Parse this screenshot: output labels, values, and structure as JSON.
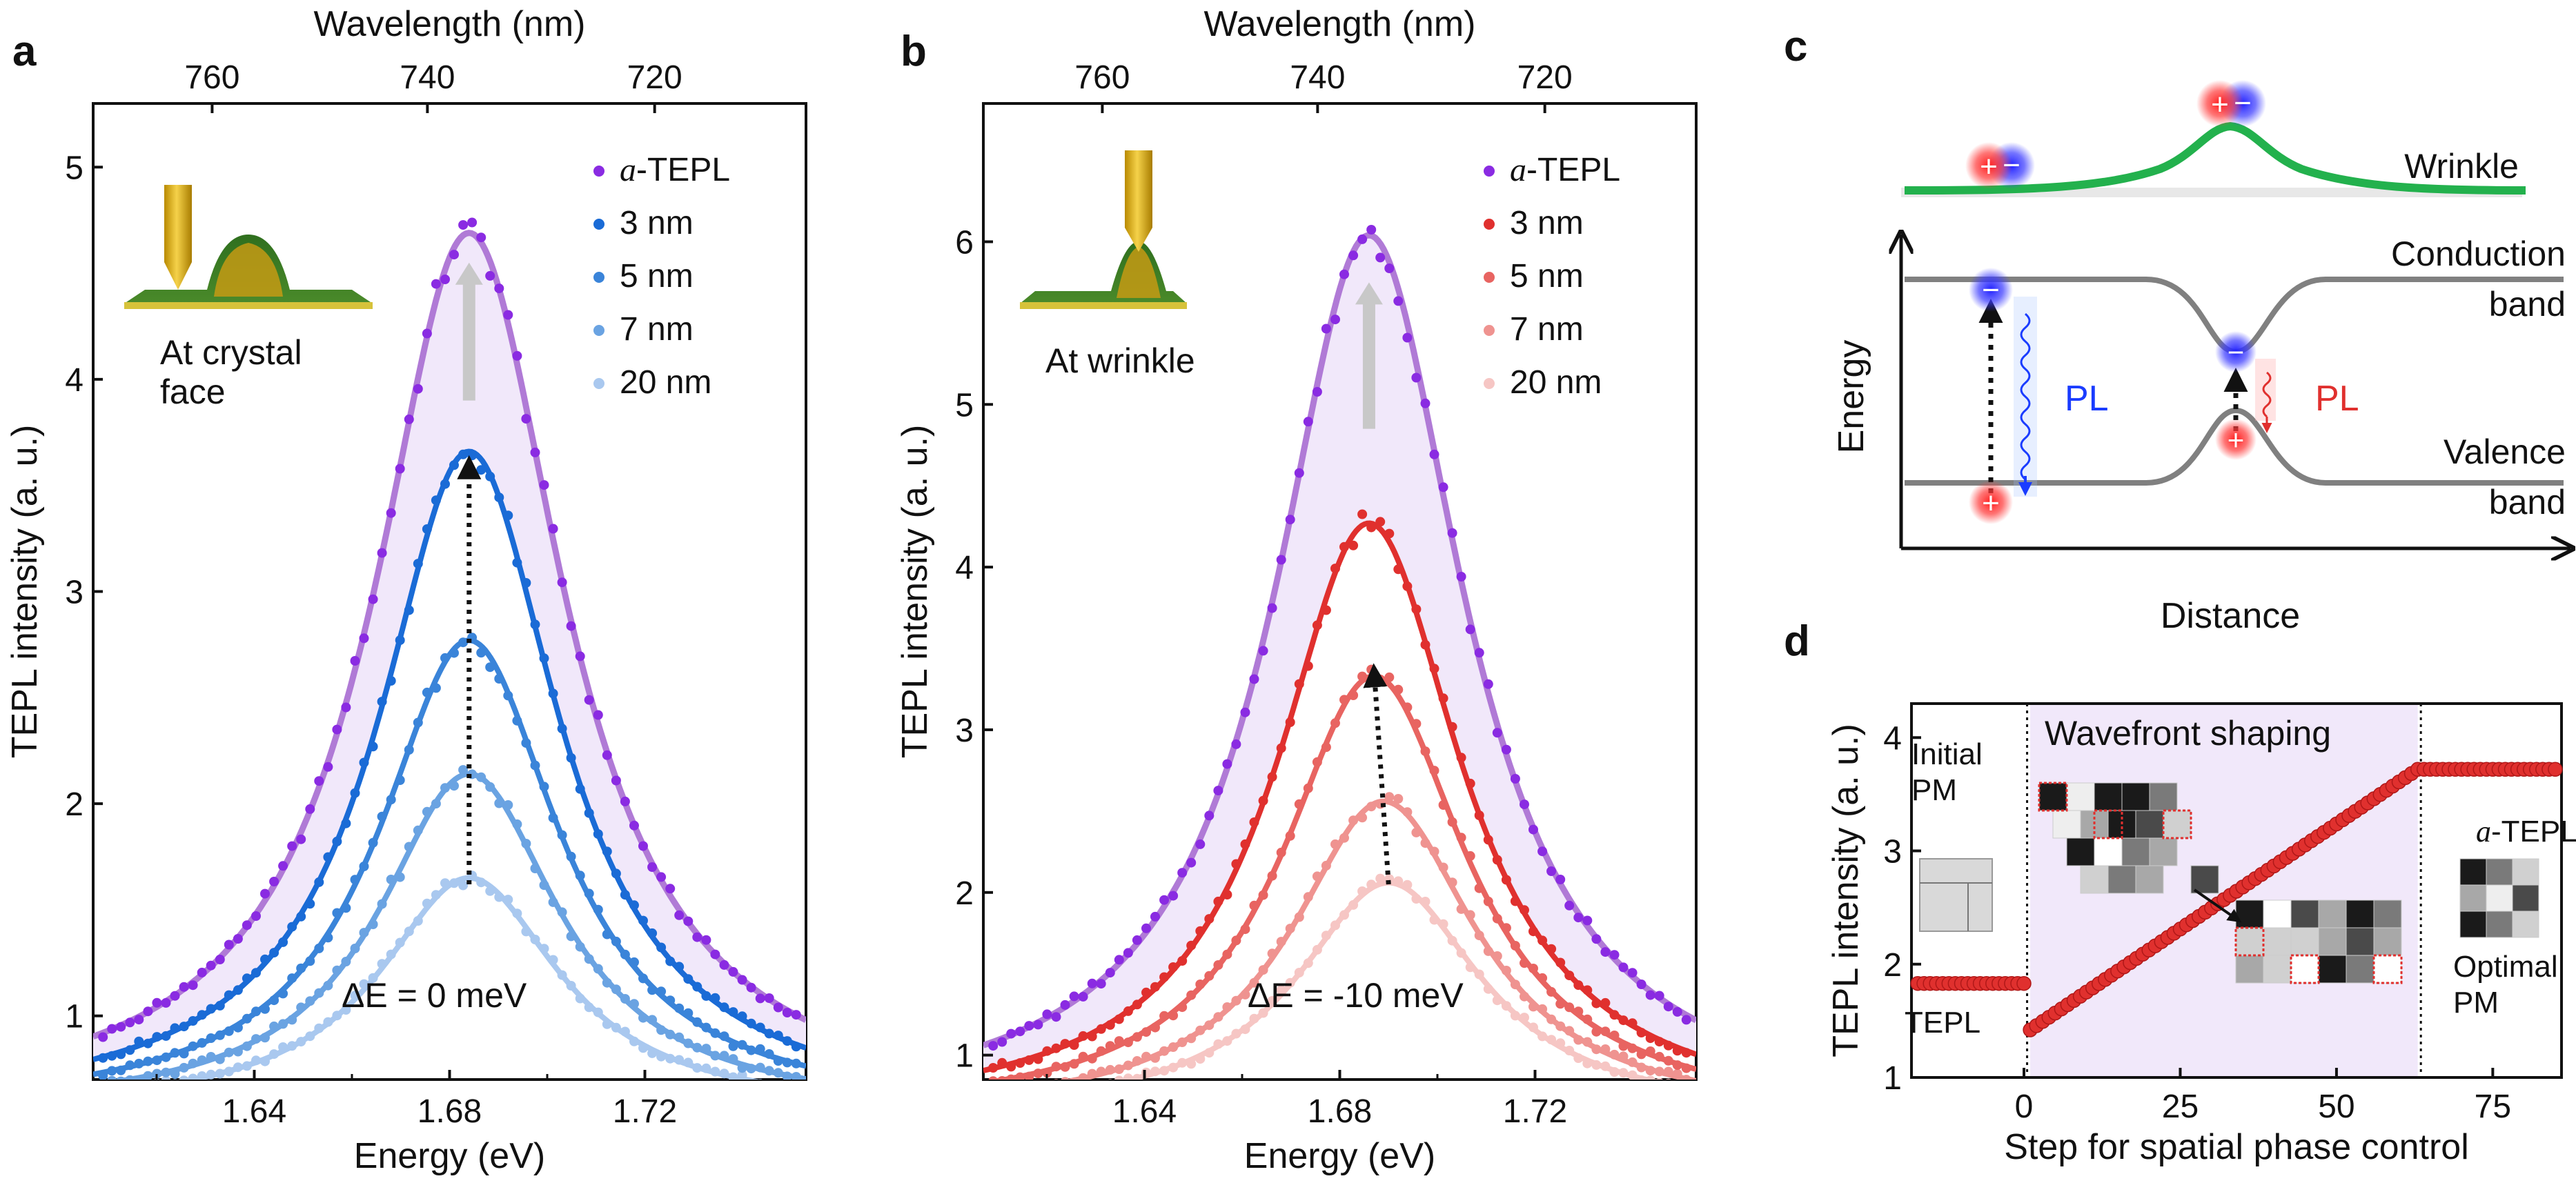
{
  "panels": {
    "a": {
      "letter": "a",
      "inset_label": [
        "At crystal",
        "face"
      ],
      "delta_text": "ΔE = 0 meV"
    },
    "b": {
      "letter": "b",
      "inset_label": [
        "At wrinkle"
      ],
      "delta_text": "ΔE = -10 meV"
    },
    "c": {
      "letter": "c",
      "labels": {
        "wrinkle": "Wrinkle",
        "conduction": "Conduction",
        "conduction_2": "band",
        "valence": "Valence",
        "valence_2": "band",
        "energy": "Energy",
        "distance": "Distance",
        "pl_left": "PL",
        "pl_right": "PL"
      }
    },
    "d": {
      "letter": "d",
      "labels": {
        "wavefront": "Wavefront shaping",
        "initial_1": "Initial",
        "initial_2": "PM",
        "optimal_1": "Optimal",
        "optimal_2": "PM",
        "tepl": "TEPL",
        "atepl_prefix": "a",
        "atepl_suffix": "-TEPL"
      }
    }
  },
  "colors": {
    "purple": "#8a2be2",
    "purple_fill": "#f1e9fb",
    "purple_line": "#b07ad6",
    "blue": [
      "#1a6bd6",
      "#3a84d9",
      "#6aa3e2",
      "#a9c8ef"
    ],
    "red": [
      "#e0302e",
      "#e86461",
      "#ef9390",
      "#f6c6c4"
    ],
    "green": "#23b14d",
    "band": "#808080",
    "shade": "#f1e8fa"
  },
  "chart_data": [
    {
      "panel": "a",
      "type": "line",
      "title": "",
      "xlabel": "Energy (eV)",
      "ylabel": "TEPL intensity (a. u.)",
      "top_xlabel": "Wavelength (nm)",
      "xlim": [
        1.607,
        1.753
      ],
      "ylim": [
        0.7,
        5.3
      ],
      "xticks": [
        1.64,
        1.68,
        1.72
      ],
      "xtick_labels": [
        "1.64",
        "1.68",
        "1.72"
      ],
      "yticks": [
        1,
        2,
        3,
        4,
        5
      ],
      "ytick_labels": [
        "1",
        "2",
        "3",
        "4",
        "5"
      ],
      "top_ticks": [
        760,
        740,
        720
      ],
      "top_tick_labels": [
        "760",
        "740",
        "720"
      ],
      "series": [
        {
          "name": "a-TEPL",
          "legend_prefix": "a",
          "legend_suffix": "-TEPL",
          "peak": 4.69,
          "center": 1.684,
          "width": 0.0235,
          "base": 0.55,
          "color": "#8a2be2"
        },
        {
          "name": "3 nm",
          "peak": 3.66,
          "center": 1.684,
          "width": 0.0225,
          "base": 0.55,
          "color": "#1a6bd6"
        },
        {
          "name": "5 nm",
          "peak": 2.77,
          "center": 1.684,
          "width": 0.0225,
          "base": 0.55,
          "color": "#3a84d9"
        },
        {
          "name": "7 nm",
          "peak": 2.14,
          "center": 1.684,
          "width": 0.0225,
          "base": 0.55,
          "color": "#6aa3e2"
        },
        {
          "name": "20 nm",
          "peak": 1.65,
          "center": 1.684,
          "width": 0.0225,
          "base": 0.55,
          "color": "#a9c8ef"
        }
      ],
      "arrow": {
        "from": [
          1.684,
          1.62
        ],
        "to": [
          1.684,
          3.62
        ]
      },
      "legend_position": "top-right"
    },
    {
      "panel": "b",
      "type": "line",
      "title": "",
      "xlabel": "Energy (eV)",
      "ylabel": "TEPL intensity (a. u.)",
      "top_xlabel": "Wavelength (nm)",
      "xlim": [
        1.607,
        1.753
      ],
      "ylim": [
        0.85,
        6.85
      ],
      "xticks": [
        1.64,
        1.68,
        1.72
      ],
      "xtick_labels": [
        "1.64",
        "1.68",
        "1.72"
      ],
      "yticks": [
        1,
        2,
        3,
        4,
        5,
        6
      ],
      "ytick_labels": [
        "1",
        "2",
        "3",
        "4",
        "5",
        "6"
      ],
      "top_ticks": [
        760,
        740,
        720
      ],
      "top_tick_labels": [
        "760",
        "740",
        "720"
      ],
      "series": [
        {
          "name": "a-TEPL",
          "legend_prefix": "a",
          "legend_suffix": "-TEPL",
          "peak": 6.04,
          "center": 1.686,
          "width": 0.0235,
          "base": 0.62,
          "color": "#8a2be2"
        },
        {
          "name": "3 nm",
          "peak": 4.27,
          "center": 1.686,
          "width": 0.023,
          "base": 0.62,
          "color": "#e0302e"
        },
        {
          "name": "5 nm",
          "peak": 3.33,
          "center": 1.687,
          "width": 0.023,
          "base": 0.62,
          "color": "#e86461"
        },
        {
          "name": "7 nm",
          "peak": 2.56,
          "center": 1.689,
          "width": 0.023,
          "base": 0.62,
          "color": "#ef9390"
        },
        {
          "name": "20 nm",
          "peak": 2.06,
          "center": 1.69,
          "width": 0.023,
          "base": 0.62,
          "color": "#f6c6c4"
        }
      ],
      "arrow": {
        "from": [
          1.69,
          2.05
        ],
        "to": [
          1.687,
          3.38
        ]
      },
      "legend_position": "top-right"
    },
    {
      "panel": "d",
      "type": "scatter",
      "title": "",
      "xlabel": "Step for spatial phase control",
      "ylabel": "TEPL intensity (a. u.)",
      "xlim": [
        -18,
        86
      ],
      "ylim": [
        1,
        4.3
      ],
      "xticks": [
        0,
        25,
        50,
        75
      ],
      "xtick_labels": [
        "0",
        "25",
        "50",
        "75"
      ],
      "yticks": [
        1,
        2,
        3,
        4
      ],
      "ytick_labels": [
        "1",
        "2",
        "3",
        "4"
      ],
      "shaded_range": [
        1,
        63
      ],
      "series": [
        {
          "name": "TEPL",
          "x_start": -17,
          "x_end": 0,
          "y_start": 1.83,
          "y_end": 1.83,
          "color": "#e0302e"
        },
        {
          "name": "Wavefront shaping",
          "x_start": 1,
          "x_end": 63,
          "y_start": 1.42,
          "y_end": 3.72,
          "color": "#e0302e"
        },
        {
          "name": "a-TEPL",
          "x_start": 64,
          "x_end": 85,
          "y_start": 3.72,
          "y_end": 3.72,
          "color": "#e0302e"
        }
      ]
    }
  ]
}
